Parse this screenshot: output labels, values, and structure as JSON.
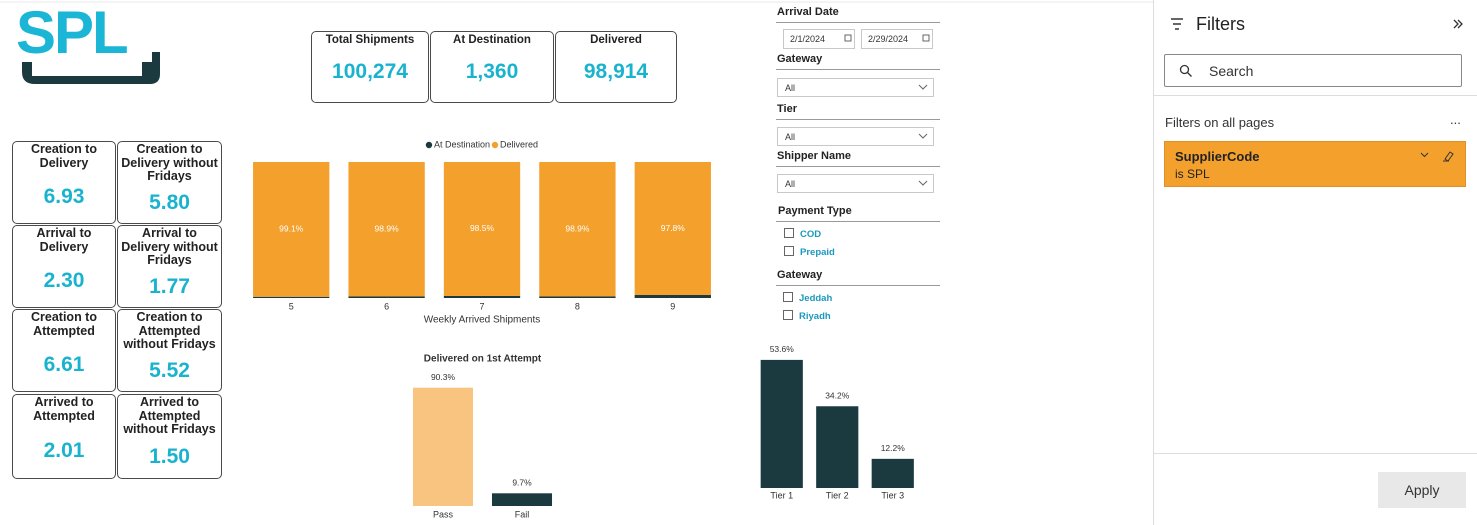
{
  "logo": "SPL",
  "kpis": [
    {
      "label": "Total Shipments",
      "value": "100,274"
    },
    {
      "label": "At Destination",
      "value": "1,360"
    },
    {
      "label": "Delivered",
      "value": "98,914"
    }
  ],
  "metrics": [
    {
      "label": "Creation to Delivery",
      "value": "6.93"
    },
    {
      "label": "Creation to Delivery without Fridays",
      "value": "5.80"
    },
    {
      "label": "Arrival to Delivery",
      "value": "2.30"
    },
    {
      "label": "Arrival to Delivery without Fridays",
      "value": "1.77"
    },
    {
      "label": "Creation to Attempted",
      "value": "6.61"
    },
    {
      "label": "Creation to Attempted without Fridays",
      "value": "5.52"
    },
    {
      "label": "Arrived to Attempted",
      "value": "2.01"
    },
    {
      "label": "Arrived to Attempted without Fridays",
      "value": "1.50"
    }
  ],
  "slicers": [
    {
      "title": "Arrival Date",
      "from": "2/1/2024",
      "to": "2/29/2024"
    },
    {
      "title": "Gateway",
      "selected": "All"
    },
    {
      "title": "Tier",
      "selected": "All"
    },
    {
      "title": "Shipper Name",
      "selected": "All"
    },
    {
      "title": "Payment Type",
      "options": [
        "COD",
        "Prepaid"
      ]
    },
    {
      "title": "Gateway",
      "options": [
        "Jeddah",
        "Riyadh"
      ]
    }
  ],
  "filters_pane": {
    "title": "Filters",
    "search_placeholder": "Search",
    "section": "Filters on all pages",
    "more": "...",
    "filter": {
      "field": "SupplierCode",
      "condition": "is SPL"
    },
    "apply": "Apply"
  },
  "chart_data": [
    {
      "type": "bar",
      "stacked": true,
      "x_label": "Weekly Arrived Shipments",
      "legend": "top",
      "categories": [
        "5",
        "6",
        "7",
        "8",
        "9"
      ],
      "ylim": [
        0,
        100
      ],
      "series": [
        {
          "name": "At Destination",
          "color": "#1b3a3f",
          "values": [
            0.9,
            1.1,
            1.5,
            1.1,
            2.2
          ]
        },
        {
          "name": "Delivered",
          "color": "#f4a02d",
          "values": [
            99.1,
            98.9,
            98.5,
            98.9,
            97.8
          ],
          "value_labels": [
            "99.1%",
            "98.9%",
            "98.5%",
            "98.9%",
            "97.8%"
          ]
        }
      ]
    },
    {
      "type": "bar",
      "title": "Delivered on 1st Attempt",
      "categories": [
        "Pass",
        "Fail"
      ],
      "ylim": [
        0,
        100
      ],
      "values": [
        90.3,
        9.7
      ],
      "value_labels": [
        "90.3%",
        "9.7%"
      ],
      "colors": [
        "#f9c47f",
        "#1b3a3f"
      ]
    },
    {
      "type": "bar",
      "categories": [
        "Tier 1",
        "Tier 2",
        "Tier 3"
      ],
      "ylim": [
        0,
        100
      ],
      "values": [
        53.6,
        34.2,
        12.2
      ],
      "value_labels": [
        "53.6%",
        "34.2%",
        "12.2%"
      ],
      "colors": [
        "#1b3a3f",
        "#1b3a3f",
        "#1b3a3f"
      ]
    }
  ]
}
